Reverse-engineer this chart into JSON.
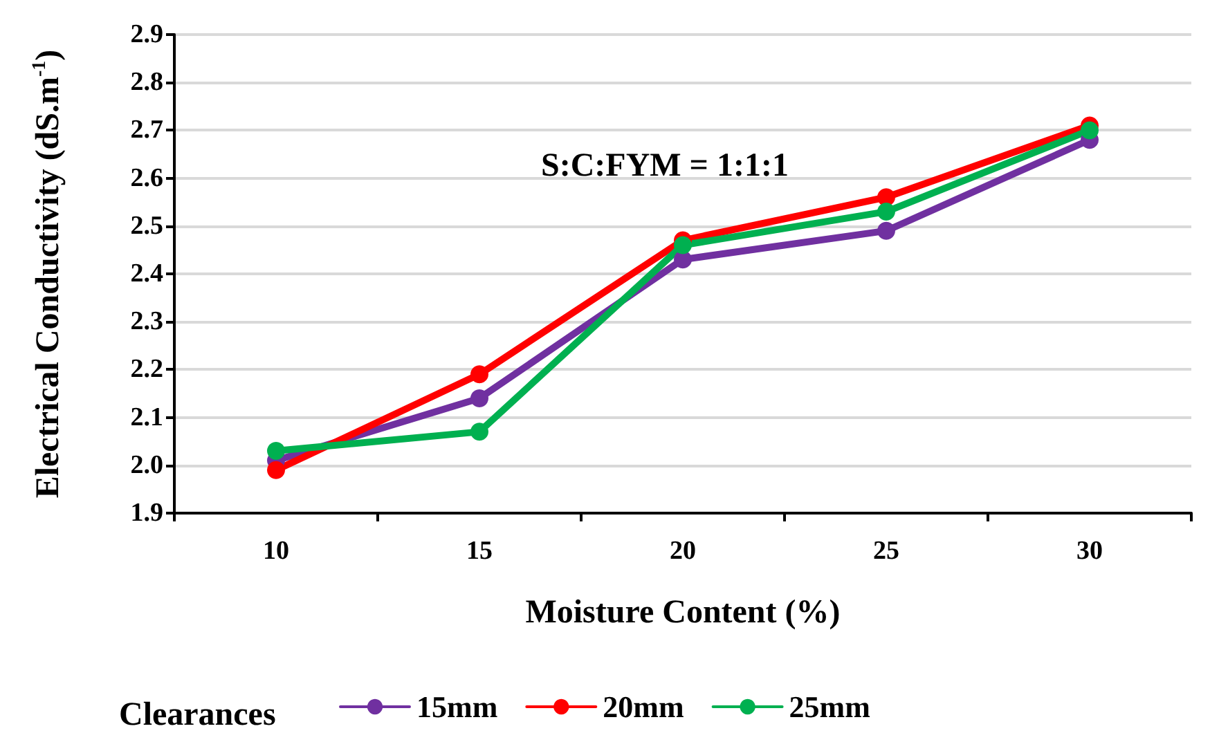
{
  "chart_data": {
    "type": "line",
    "xlabel": "Moisture Content (%)",
    "ylabel": "Electrical Conductivity (dS.m$^{-1}$)",
    "legend_title": "Clearances",
    "annotations": [
      "S:C:FYM = 1:1:1"
    ],
    "categories": [
      "10",
      "15",
      "20",
      "25",
      "30"
    ],
    "series": [
      {
        "name": "15mm",
        "color": "#7030a0",
        "values": [
          2.01,
          2.14,
          2.43,
          2.49,
          2.68
        ]
      },
      {
        "name": "20mm",
        "color": "#ff0000",
        "values": [
          1.99,
          2.19,
          2.47,
          2.56,
          2.71
        ]
      },
      {
        "name": "25mm",
        "color": "#00b050",
        "values": [
          2.03,
          2.07,
          2.46,
          2.53,
          2.7
        ]
      }
    ],
    "ylim": [
      1.9,
      2.9
    ],
    "yticks": [
      1.9,
      {
        "value": 2.0,
        "label": "2.0"
      },
      2.1,
      2.2,
      2.3,
      2.4,
      2.5,
      2.6,
      2.7,
      2.8,
      2.9
    ],
    "grid": "y",
    "legend": "bottom",
    "marker": "circle",
    "line_style": "solid"
  }
}
